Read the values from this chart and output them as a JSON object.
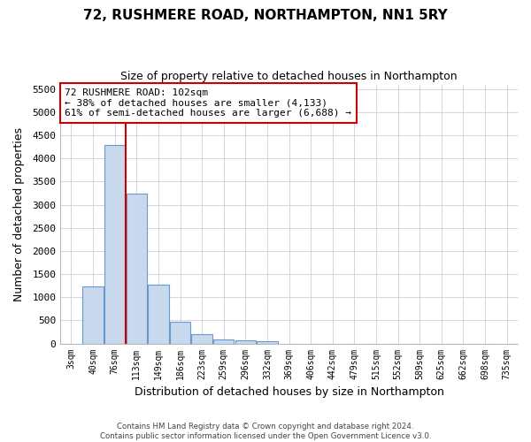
{
  "title": "72, RUSHMERE ROAD, NORTHAMPTON, NN1 5RY",
  "subtitle": "Size of property relative to detached houses in Northampton",
  "xlabel": "Distribution of detached houses by size in Northampton",
  "ylabel": "Number of detached properties",
  "footer_line1": "Contains HM Land Registry data © Crown copyright and database right 2024.",
  "footer_line2": "Contains public sector information licensed under the Open Government Licence v3.0.",
  "bar_color": "#c8d9ee",
  "bar_edge_color": "#6699cc",
  "grid_color": "#ccccdd",
  "vline_color": "#cc0000",
  "annotation_line1": "72 RUSHMERE ROAD: 102sqm",
  "annotation_line2": "← 38% of detached houses are smaller (4,133)",
  "annotation_line3": "61% of semi-detached houses are larger (6,688) →",
  "annotation_box_color": "white",
  "annotation_box_edge_color": "#cc0000",
  "categories": [
    "3sqm",
    "40sqm",
    "76sqm",
    "113sqm",
    "149sqm",
    "186sqm",
    "223sqm",
    "259sqm",
    "296sqm",
    "332sqm",
    "369sqm",
    "406sqm",
    "442sqm",
    "479sqm",
    "515sqm",
    "552sqm",
    "589sqm",
    "625sqm",
    "662sqm",
    "698sqm",
    "735sqm"
  ],
  "values": [
    0,
    1230,
    4290,
    3240,
    1280,
    470,
    195,
    90,
    70,
    55,
    0,
    0,
    0,
    0,
    0,
    0,
    0,
    0,
    0,
    0,
    0
  ],
  "ylim": [
    0,
    5600
  ],
  "yticks": [
    0,
    500,
    1000,
    1500,
    2000,
    2500,
    3000,
    3500,
    4000,
    4500,
    5000,
    5500
  ],
  "figsize": [
    6.0,
    5.0
  ],
  "dpi": 100,
  "vline_x_idx": 2.5
}
